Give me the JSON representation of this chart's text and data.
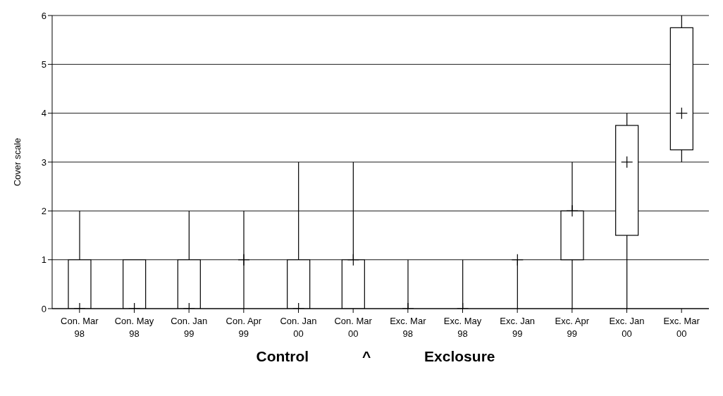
{
  "chart_data": {
    "type": "box",
    "xlabel": "Control ^ Exclosure",
    "ylabel": "Cover scale",
    "categories": [
      "Con. Mar 98",
      "Con. May 98",
      "Con. Jan 99",
      "Con. Apr 99",
      "Con. Jan 00",
      "Con. Mar 00",
      "Exc. Mar 98",
      "Exc. May 98",
      "Exc. Jan 99",
      "Exc. Apr 99",
      "Exc. Jan 00",
      "Exc. Mar 00"
    ],
    "boxes": [
      {
        "low": 0,
        "q1": 0,
        "median": 0,
        "q3": 1,
        "high": 2
      },
      {
        "low": 0,
        "q1": 0,
        "median": 0,
        "q3": 1,
        "high": 1
      },
      {
        "low": 0,
        "q1": 0,
        "median": 0,
        "q3": 1,
        "high": 2
      },
      {
        "low": 0,
        "q1": 1,
        "median": 1,
        "q3": 1,
        "high": 2
      },
      {
        "low": 0,
        "q1": 0,
        "median": 0,
        "q3": 1,
        "high": 3
      },
      {
        "low": 0,
        "q1": 0,
        "median": 1,
        "q3": 1,
        "high": 3
      },
      {
        "low": 0,
        "q1": 0,
        "median": 0,
        "q3": 0,
        "high": 1
      },
      {
        "low": 0,
        "q1": 0,
        "median": 0,
        "q3": 0,
        "high": 1
      },
      {
        "low": 0,
        "q1": 1,
        "median": 1,
        "q3": 1,
        "high": 1
      },
      {
        "low": 0,
        "q1": 1,
        "median": 2,
        "q3": 2,
        "high": 3
      },
      {
        "low": 0,
        "q1": 1.5,
        "median": 3,
        "q3": 3.75,
        "high": 4
      },
      {
        "low": 3,
        "q1": 3.25,
        "median": 4,
        "q3": 5.75,
        "high": 6
      }
    ],
    "color": "#000000",
    "ylim": [
      0,
      6
    ],
    "yticks": [
      0,
      1,
      2,
      3,
      4,
      5,
      6
    ],
    "grid": "y"
  }
}
